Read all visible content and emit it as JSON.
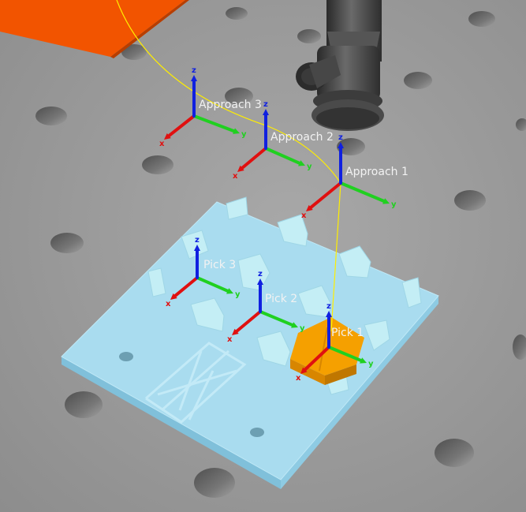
{
  "scene": {
    "frames": [
      {
        "id": "approach-3",
        "label": "Approach 3",
        "kind": "approach"
      },
      {
        "id": "approach-2",
        "label": "Approach 2",
        "kind": "approach"
      },
      {
        "id": "approach-1",
        "label": "Approach 1",
        "kind": "approach"
      },
      {
        "id": "pick-3",
        "label": "Pick 3",
        "kind": "pick"
      },
      {
        "id": "pick-2",
        "label": "Pick 2",
        "kind": "pick"
      },
      {
        "id": "pick-1",
        "label": "Pick 1",
        "kind": "pick"
      }
    ],
    "axis_letters": {
      "x": "x",
      "y": "y",
      "z": "z"
    },
    "colors": {
      "floor": "#9a9a9a",
      "hole": "#6a6a6a",
      "fixture_plate": "#a9dcef",
      "fixture_parts": "#c4eef5",
      "workpiece": "#f5a000",
      "orange_block": "#f25400",
      "gripper": "#3a3a3a",
      "axis_x": "#e01010",
      "axis_y": "#20d020",
      "axis_z": "#1020e0",
      "trajectory": "#ffee00",
      "frame_label": "#f2f2f2"
    }
  }
}
